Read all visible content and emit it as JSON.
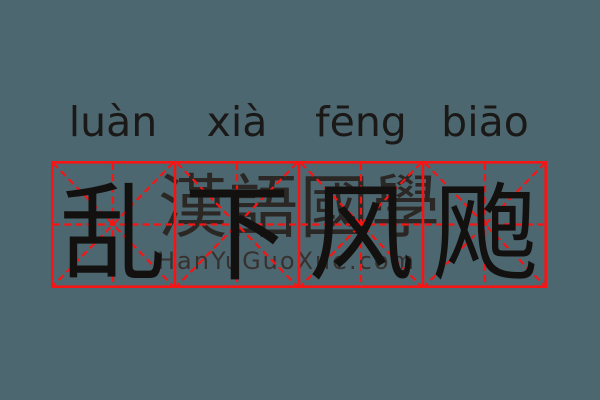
{
  "word": {
    "syllables": [
      {
        "pinyin": "luàn",
        "hanzi": "乱"
      },
      {
        "pinyin": "xià",
        "hanzi": "下"
      },
      {
        "pinyin": "fēng",
        "hanzi": "风"
      },
      {
        "pinyin": "biāo",
        "hanzi": "飑"
      }
    ]
  },
  "watermark": {
    "cjk": "漢語國學",
    "url": "HanYuGuoXue.com"
  },
  "grid": {
    "style": "tianzige-practice-grid",
    "cell_count": 4
  },
  "colors": {
    "background": "#4d6770",
    "grid_red": "#f71414",
    "hanzi_black": "#131110",
    "watermark_cjk": "#2b2724",
    "watermark_url": "#37322f"
  }
}
